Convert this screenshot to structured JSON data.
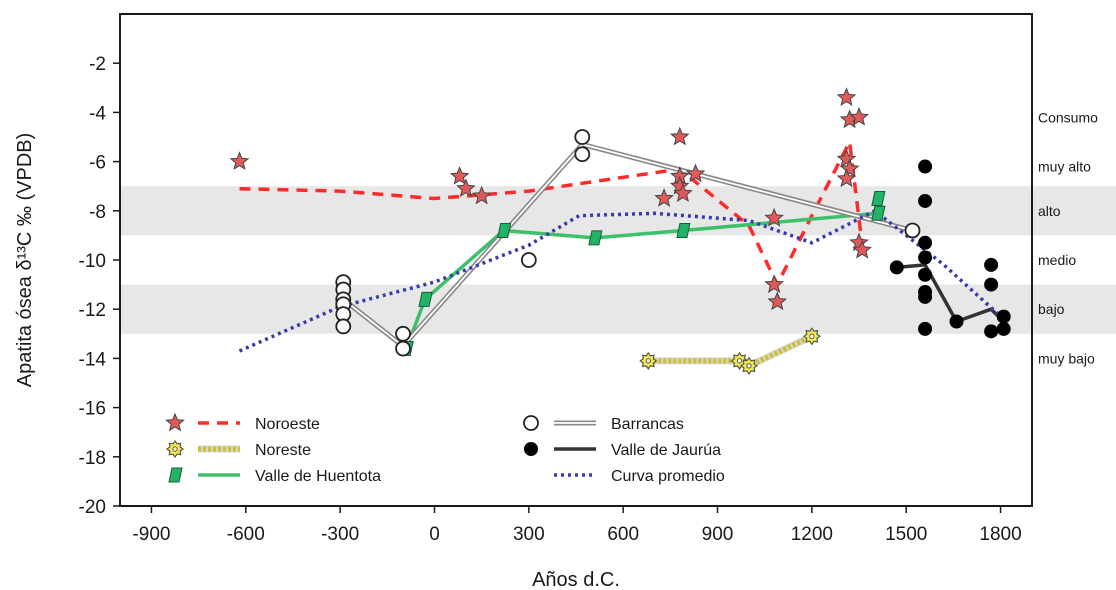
{
  "chart_data": {
    "type": "scatter",
    "xlabel": "Años d.C.",
    "ylabel": "Apatita ósea δ¹³C ‰ (VPDB)",
    "xlim": [
      -1000,
      1900
    ],
    "ylim": [
      -20,
      0
    ],
    "xticks": [
      -900,
      -600,
      -300,
      0,
      300,
      600,
      900,
      1200,
      1500,
      1800
    ],
    "xtick_labels": [
      "-900",
      "-600",
      "-300",
      "0",
      "300",
      "600",
      "900",
      "1200",
      "1500",
      "1800"
    ],
    "yticks": [
      -2,
      -4,
      -6,
      -8,
      -10,
      -12,
      -14,
      -16,
      -18,
      -20
    ],
    "ytick_labels": [
      "-2",
      "-4",
      "-6",
      "-8",
      "-10",
      "-12",
      "-14",
      "-16",
      "-18",
      "-20"
    ],
    "grid": false,
    "legend_position": "bottom-left",
    "bands": [
      {
        "from": -7,
        "to": -9,
        "color": "#e6e7e6"
      },
      {
        "from": -11,
        "to": -13,
        "color": "#e6e7e6"
      }
    ],
    "band_labels": [
      {
        "text": "Consumo",
        "y": -4.2
      },
      {
        "text": "muy alto",
        "y": -6.2
      },
      {
        "text": "alto",
        "y": -8.0
      },
      {
        "text": "medio",
        "y": -10.0
      },
      {
        "text": "bajo",
        "y": -12.0
      },
      {
        "text": "muy bajo",
        "y": -14.0
      }
    ],
    "series": [
      {
        "name": "Noroeste",
        "marker": "star",
        "marker_color": "#e05a5a",
        "line_color": "#ff2a2a",
        "line_style": "dashed",
        "points": [
          {
            "x": -620,
            "y": -6.0
          },
          {
            "x": 80,
            "y": -6.6
          },
          {
            "x": 100,
            "y": -7.1
          },
          {
            "x": 150,
            "y": -7.4
          },
          {
            "x": 730,
            "y": -7.5
          },
          {
            "x": 780,
            "y": -5.0
          },
          {
            "x": 780,
            "y": -6.6
          },
          {
            "x": 780,
            "y": -7.0
          },
          {
            "x": 790,
            "y": -7.3
          },
          {
            "x": 830,
            "y": -6.5
          },
          {
            "x": 1080,
            "y": -8.3
          },
          {
            "x": 1080,
            "y": -11.0
          },
          {
            "x": 1090,
            "y": -11.7
          },
          {
            "x": 1310,
            "y": -3.4
          },
          {
            "x": 1320,
            "y": -4.3
          },
          {
            "x": 1350,
            "y": -4.2
          },
          {
            "x": 1310,
            "y": -5.9
          },
          {
            "x": 1320,
            "y": -6.3
          },
          {
            "x": 1310,
            "y": -6.7
          },
          {
            "x": 1350,
            "y": -9.3
          },
          {
            "x": 1360,
            "y": -9.6
          }
        ],
        "curve": [
          {
            "x": -620,
            "y": -7.1
          },
          {
            "x": -300,
            "y": -7.2
          },
          {
            "x": 0,
            "y": -7.5
          },
          {
            "x": 300,
            "y": -7.2
          },
          {
            "x": 780,
            "y": -6.3
          },
          {
            "x": 1000,
            "y": -8.6
          },
          {
            "x": 1090,
            "y": -11.0
          },
          {
            "x": 1200,
            "y": -8.2
          },
          {
            "x": 1320,
            "y": -5.2
          },
          {
            "x": 1360,
            "y": -9.4
          }
        ]
      },
      {
        "name": "Noreste",
        "marker": "gear",
        "marker_color": "#f7ea4a",
        "line_color": "#f2e02c",
        "line_style": "dotted",
        "points": [
          {
            "x": 680,
            "y": -14.1
          },
          {
            "x": 970,
            "y": -14.1
          },
          {
            "x": 1000,
            "y": -14.3
          },
          {
            "x": 1200,
            "y": -13.1
          }
        ],
        "curve": [
          {
            "x": 680,
            "y": -14.1
          },
          {
            "x": 970,
            "y": -14.1
          },
          {
            "x": 1000,
            "y": -14.3
          },
          {
            "x": 1200,
            "y": -13.1
          }
        ]
      },
      {
        "name": "Valle de Huentota",
        "marker": "parallelogram",
        "marker_color": "#22b466",
        "line_color": "#3cc06a",
        "line_style": "solid",
        "points": [
          {
            "x": -90,
            "y": -13.6
          },
          {
            "x": -30,
            "y": -11.6
          },
          {
            "x": 220,
            "y": -8.8
          },
          {
            "x": 510,
            "y": -9.1
          },
          {
            "x": 790,
            "y": -8.8
          },
          {
            "x": 1410,
            "y": -8.1
          },
          {
            "x": 1410,
            "y": -7.5
          }
        ],
        "curve": [
          {
            "x": -90,
            "y": -13.6
          },
          {
            "x": -30,
            "y": -11.6
          },
          {
            "x": 220,
            "y": -8.8
          },
          {
            "x": 510,
            "y": -9.1
          },
          {
            "x": 790,
            "y": -8.8
          },
          {
            "x": 1410,
            "y": -8.1
          }
        ]
      },
      {
        "name": "Barrancas",
        "marker": "open-circle",
        "marker_color": "#ffffff",
        "line_color": "#888888",
        "line_style": "double",
        "points": [
          {
            "x": -290,
            "y": -10.9
          },
          {
            "x": -290,
            "y": -11.2
          },
          {
            "x": -290,
            "y": -11.6
          },
          {
            "x": -290,
            "y": -11.8
          },
          {
            "x": -290,
            "y": -12.2
          },
          {
            "x": -290,
            "y": -12.7
          },
          {
            "x": -100,
            "y": -13.0
          },
          {
            "x": -100,
            "y": -13.6
          },
          {
            "x": 300,
            "y": -10.0
          },
          {
            "x": 470,
            "y": -5.0
          },
          {
            "x": 470,
            "y": -5.7
          },
          {
            "x": 1520,
            "y": -8.8
          }
        ],
        "curve": [
          {
            "x": -290,
            "y": -11.6
          },
          {
            "x": -100,
            "y": -13.5
          },
          {
            "x": 470,
            "y": -5.3
          },
          {
            "x": 1520,
            "y": -8.8
          }
        ]
      },
      {
        "name": "Valle de Jaurúa",
        "marker": "filled-circle",
        "marker_color": "#000000",
        "line_color": "#333333",
        "line_style": "solid",
        "points": [
          {
            "x": 1470,
            "y": -10.3
          },
          {
            "x": 1560,
            "y": -6.2
          },
          {
            "x": 1560,
            "y": -7.6
          },
          {
            "x": 1560,
            "y": -9.3
          },
          {
            "x": 1560,
            "y": -9.9
          },
          {
            "x": 1560,
            "y": -10.6
          },
          {
            "x": 1560,
            "y": -11.3
          },
          {
            "x": 1560,
            "y": -11.5
          },
          {
            "x": 1560,
            "y": -12.8
          },
          {
            "x": 1660,
            "y": -12.5
          },
          {
            "x": 1770,
            "y": -10.2
          },
          {
            "x": 1770,
            "y": -11.0
          },
          {
            "x": 1770,
            "y": -12.9
          },
          {
            "x": 1810,
            "y": -12.3
          },
          {
            "x": 1810,
            "y": -12.8
          }
        ],
        "curve": [
          {
            "x": 1470,
            "y": -10.3
          },
          {
            "x": 1560,
            "y": -10.2
          },
          {
            "x": 1660,
            "y": -12.5
          },
          {
            "x": 1770,
            "y": -12.0
          },
          {
            "x": 1810,
            "y": -12.5
          }
        ]
      },
      {
        "name": "Curva promedio",
        "marker": "none",
        "line_color": "#3a3ab0",
        "line_style": "dotted",
        "points": [],
        "curve": [
          {
            "x": -620,
            "y": -13.7
          },
          {
            "x": -300,
            "y": -11.9
          },
          {
            "x": 0,
            "y": -10.9
          },
          {
            "x": 300,
            "y": -9.4
          },
          {
            "x": 460,
            "y": -8.2
          },
          {
            "x": 700,
            "y": -8.1
          },
          {
            "x": 1000,
            "y": -8.4
          },
          {
            "x": 1200,
            "y": -9.3
          },
          {
            "x": 1400,
            "y": -8.0
          },
          {
            "x": 1620,
            "y": -10.2
          },
          {
            "x": 1810,
            "y": -12.4
          }
        ]
      }
    ]
  }
}
